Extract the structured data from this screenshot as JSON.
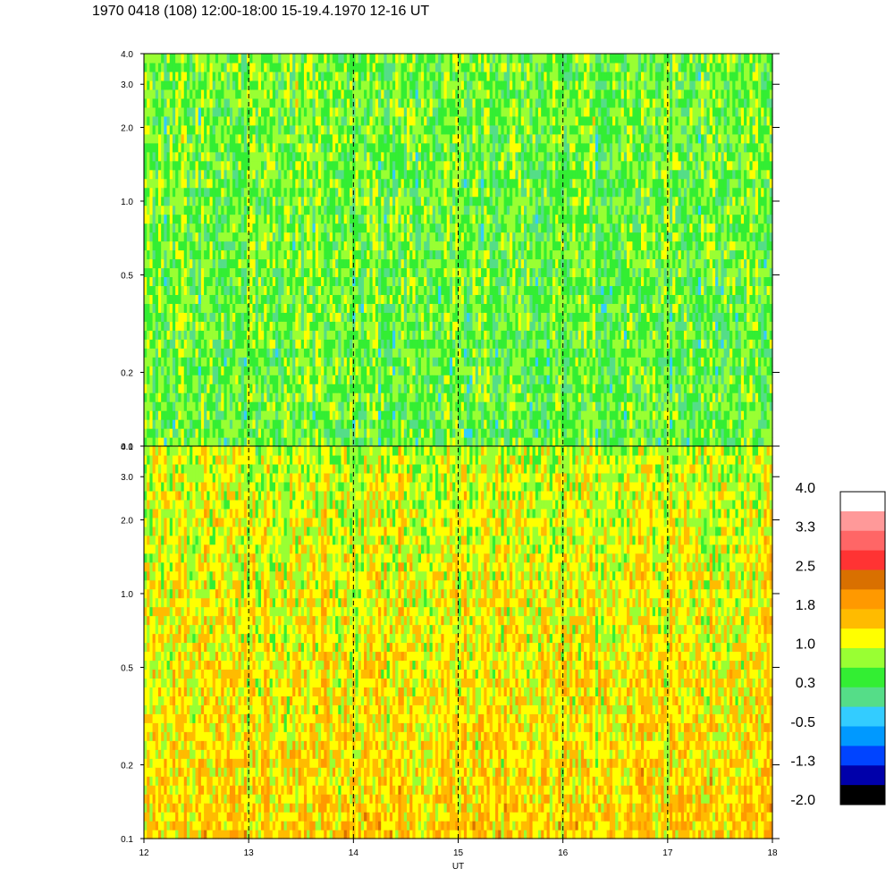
{
  "title": "1970 0418 (108) 12:00-18:00 15-19.4.1970  12-16 UT",
  "chart_data": {
    "type": "heatmap",
    "title": "1970 0418 (108) 12:00-18:00 15-19.4.1970  12-16 UT",
    "xlabel": "UT",
    "ylabel": "",
    "x_ticks": [
      "12",
      "13",
      "14",
      "15",
      "16",
      "17",
      "18"
    ],
    "xlim": [
      12,
      18
    ],
    "dashed_reference_lines_x": [
      13,
      14,
      15,
      16,
      17
    ],
    "panels": [
      {
        "name": "upper",
        "y_scale": "log",
        "ylim": [
          0.1,
          4.0
        ],
        "y_ticks": [
          "0.1",
          "0.2",
          "0.5",
          "1.0",
          "2.0",
          "3.0",
          "4.0"
        ],
        "dominant_colors": [
          "green",
          "yellow",
          "cyan"
        ],
        "base_level_low_freq": 0.5,
        "base_level_high_freq": 0.6
      },
      {
        "name": "lower",
        "y_scale": "log",
        "ylim": [
          0.1,
          4.0
        ],
        "y_ticks": [
          "0.1",
          "0.2",
          "0.5",
          "1.0",
          "2.0",
          "3.0",
          "4.0"
        ],
        "dominant_colors": [
          "orange",
          "yellow",
          "dark orange"
        ],
        "base_level_low_freq": 1.5,
        "base_level_high_freq": 1.0
      }
    ],
    "colorbar": {
      "labels": [
        "4.0",
        "3.3",
        "2.5",
        "1.8",
        "1.0",
        "0.3",
        "-0.5",
        "-1.3",
        "-2.0"
      ],
      "range": [
        -2.0,
        4.0
      ],
      "colors_top_to_bottom": [
        "#ffffff",
        "#ff9999",
        "#ff6666",
        "#ff3333",
        "#d97000",
        "#ff9900",
        "#ffbb00",
        "#ffff00",
        "#99ff33",
        "#33ee33",
        "#55dd88",
        "#33ccff",
        "#0099ff",
        "#0044ff",
        "#0000aa",
        "#000000"
      ]
    }
  }
}
